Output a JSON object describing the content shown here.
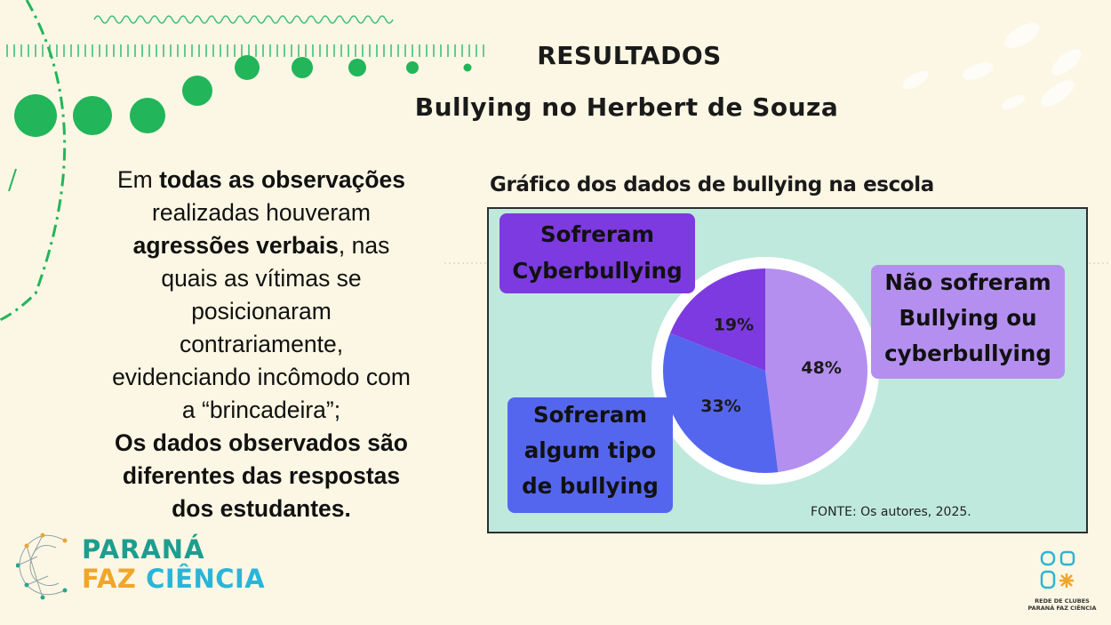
{
  "header": {
    "title": "RESULTADOS",
    "subtitle": "Bullying no Herbert de Souza"
  },
  "body": {
    "p1": "Em ",
    "p1_bold": "todas as observações",
    "p2": "realizadas houveram",
    "p3_bold": "agressões verbais",
    "p3": ", nas",
    "p4": "quais as vítimas se",
    "p5": "posicionaram",
    "p6": "contrariamente,",
    "p7": "evidenciando incômodo com",
    "p8": "a “brincadeira”;",
    "p9_bold": "Os dados observados são",
    "p10_bold": "diferentes das respostas",
    "p11_bold": "dos estudantes."
  },
  "chart_data": {
    "type": "pie",
    "title": "Gráfico dos dados de bullying na escola",
    "slices": [
      {
        "label": "Não sofreram Bullying ou cyberbullying",
        "label_lines": [
          "Não sofreram",
          "Bullying ou",
          "cyberbullying"
        ],
        "value": 48,
        "display": "48%",
        "color": "#b48ff0"
      },
      {
        "label": "Sofreram algum tipo de bullying",
        "label_lines": [
          "Sofreram",
          "algum tipo",
          "de bullying"
        ],
        "value": 33,
        "display": "33%",
        "color": "#5566ee"
      },
      {
        "label": "Sofreram Cyberbullying",
        "label_lines": [
          "Sofreram",
          "Cyberbullying"
        ],
        "value": 19,
        "display": "19%",
        "color": "#7d3ae0"
      }
    ],
    "source": "FONTE: Os autores, 2025."
  },
  "logos": {
    "pfc_line1": "PARANÁ",
    "pfc_faz": "FAZ",
    "pfc_ciencia": "CIÊNCIA",
    "rede_line1": "REDE DE CLUBES",
    "rede_line2": "PARANÁ FAZ CIÊNCIA"
  },
  "colors": {
    "background": "#fcf7e4",
    "accent_green": "#22b55a",
    "chart_bg": "#c0e9dd"
  }
}
